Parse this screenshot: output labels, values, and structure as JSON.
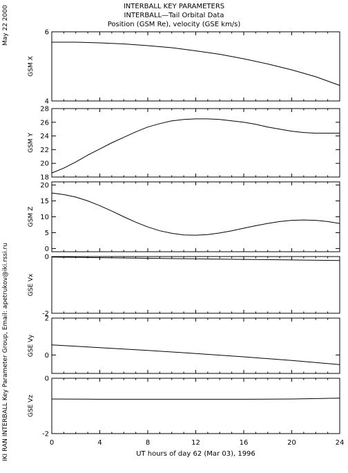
{
  "header": {
    "line1": "INTERBALL KEY PARAMETERS",
    "line2": "INTERBALL—Tail Orbital Data",
    "line3": "Position (GSM Re), velocity (GSE km/s)"
  },
  "side": {
    "date": "May 22 2000",
    "credit": "IKI RAN INTERBALL Key Parameter Group, Email: apetrukov@iki.rssi.ru"
  },
  "chart_data": {
    "type": "line",
    "x_ticks": [
      0,
      4,
      8,
      12,
      16,
      20,
      24
    ],
    "xlabel": "UT hours of day  62 (Mar 03), 1996",
    "xlim": [
      0,
      24
    ],
    "panels": [
      {
        "ylabel": "GSM X",
        "ylim": [
          4,
          6
        ],
        "yticks": [
          4,
          6
        ],
        "x": [
          0,
          2,
          4,
          6,
          8,
          10,
          12,
          14,
          16,
          18,
          20,
          22,
          24
        ],
        "y": [
          5.7,
          5.7,
          5.68,
          5.65,
          5.6,
          5.54,
          5.45,
          5.35,
          5.22,
          5.07,
          4.9,
          4.7,
          4.45
        ]
      },
      {
        "ylabel": "GSM Y",
        "ylim": [
          18,
          28
        ],
        "yticks": [
          18,
          20,
          22,
          24,
          26,
          28
        ],
        "x": [
          0,
          1,
          2,
          3,
          4,
          5,
          6,
          7,
          8,
          9,
          10,
          11,
          12,
          13,
          14,
          15,
          16,
          17,
          18,
          19,
          20,
          21,
          22,
          23,
          24
        ],
        "y": [
          18.6,
          19.3,
          20.2,
          21.2,
          22.1,
          23.0,
          23.8,
          24.6,
          25.3,
          25.8,
          26.2,
          26.4,
          26.5,
          26.5,
          26.4,
          26.2,
          26.0,
          25.7,
          25.3,
          25.0,
          24.7,
          24.5,
          24.4,
          24.4,
          24.4
        ]
      },
      {
        "ylabel": "GSM Z",
        "ylim": [
          -1,
          21
        ],
        "yticks": [
          0,
          5,
          10,
          15,
          20
        ],
        "x": [
          0,
          1,
          2,
          3,
          4,
          5,
          6,
          7,
          8,
          9,
          10,
          11,
          12,
          13,
          14,
          15,
          16,
          17,
          18,
          19,
          20,
          21,
          22,
          23,
          24
        ],
        "y": [
          17.5,
          17.0,
          16.2,
          15.0,
          13.5,
          11.8,
          10.0,
          8.3,
          6.8,
          5.6,
          4.8,
          4.3,
          4.2,
          4.4,
          4.9,
          5.6,
          6.4,
          7.2,
          7.9,
          8.5,
          8.9,
          9.0,
          8.9,
          8.5,
          7.9
        ]
      },
      {
        "ylabel": "GSE Vx",
        "ylim": [
          -2,
          0
        ],
        "yticks": [
          -2,
          0
        ],
        "x": [
          0,
          4,
          8,
          12,
          16,
          20,
          24
        ],
        "y": [
          -0.02,
          -0.04,
          -0.06,
          -0.08,
          -0.1,
          -0.12,
          -0.14
        ]
      },
      {
        "ylabel": "GSE Vy",
        "ylim": [
          -1,
          2
        ],
        "yticks": [
          0,
          2
        ],
        "x": [
          0,
          4,
          8,
          12,
          16,
          20,
          24
        ],
        "y": [
          0.55,
          0.4,
          0.25,
          0.08,
          -0.1,
          -0.3,
          -0.52
        ]
      },
      {
        "ylabel": "GSE Vz",
        "ylim": [
          -2,
          0
        ],
        "yticks": [
          -2,
          0
        ],
        "x": [
          0,
          4,
          8,
          12,
          16,
          20,
          24
        ],
        "y": [
          -0.75,
          -0.76,
          -0.76,
          -0.76,
          -0.76,
          -0.75,
          -0.72
        ]
      }
    ]
  }
}
